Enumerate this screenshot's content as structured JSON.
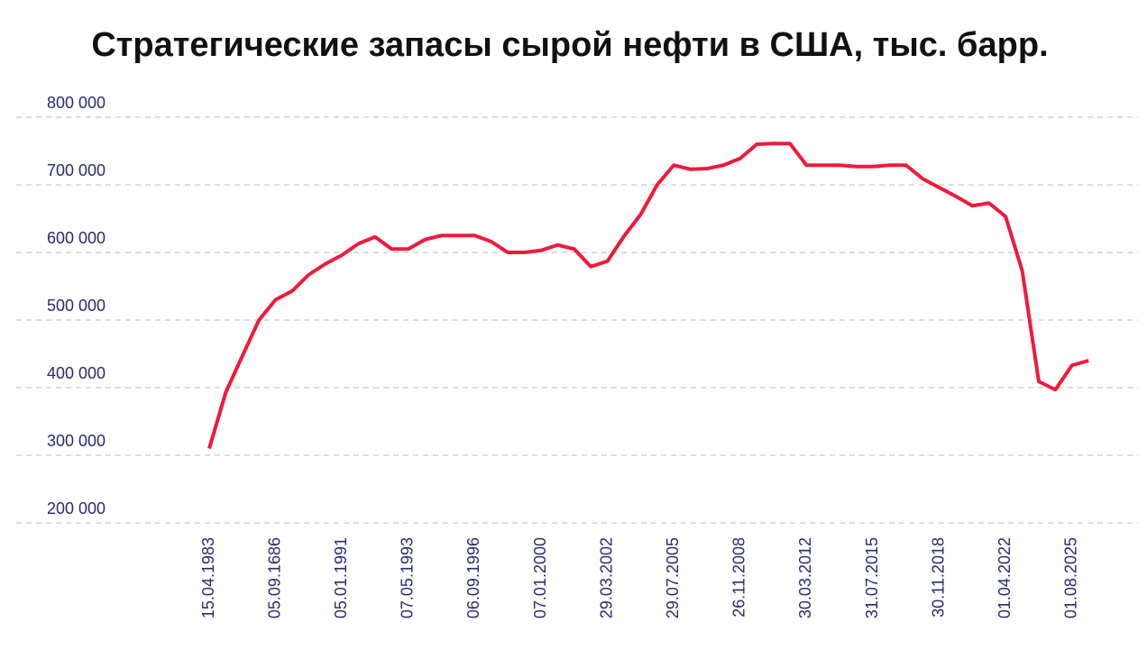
{
  "chart_data": {
    "type": "line",
    "title": "Стратегические запасы сырой нефти в США, тыс. барр.",
    "categories": [
      "15.04.1983",
      null,
      null,
      null,
      "05.09.1686",
      null,
      null,
      null,
      "05.01.1991",
      null,
      null,
      null,
      "07.05.1993",
      null,
      null,
      null,
      "06.09.1996",
      null,
      null,
      null,
      "07.01.2000",
      null,
      null,
      null,
      "29.03.2002",
      null,
      null,
      null,
      "29.07.2005",
      null,
      null,
      null,
      "26.11.2008",
      null,
      null,
      null,
      "30.03.2012",
      null,
      null,
      null,
      "31.07.2015",
      null,
      null,
      null,
      "30.11.2018",
      null,
      null,
      null,
      "01.04.2022",
      null,
      null,
      null,
      "01.08.2025",
      null
    ],
    "series": [
      {
        "color": "#f0193c",
        "values": [
          310000,
          393000,
          447000,
          500000,
          530000,
          543000,
          567000,
          583000,
          596000,
          613000,
          623000,
          605000,
          605000,
          619000,
          625000,
          625000,
          625000,
          616000,
          600000,
          600000,
          603000,
          611000,
          605000,
          579000,
          587000,
          624000,
          656000,
          700000,
          729000,
          723000,
          724000,
          729000,
          739000,
          760000,
          761000,
          761000,
          729000,
          729000,
          729000,
          727000,
          727000,
          729000,
          729000,
          709000,
          696000,
          683000,
          669000,
          673000,
          653000,
          573000,
          409000,
          397000,
          433000,
          440000
        ]
      }
    ],
    "ylim": [
      200000,
      800000
    ],
    "yticks": [
      {
        "value": 200000,
        "label": "200 000"
      },
      {
        "value": 300000,
        "label": "300 000"
      },
      {
        "value": 400000,
        "label": "400 000"
      },
      {
        "value": 500000,
        "label": "500 000"
      },
      {
        "value": 600000,
        "label": "600 000"
      },
      {
        "value": 700000,
        "label": "700 000"
      },
      {
        "value": 800000,
        "label": "800 000"
      }
    ],
    "grid": true
  }
}
